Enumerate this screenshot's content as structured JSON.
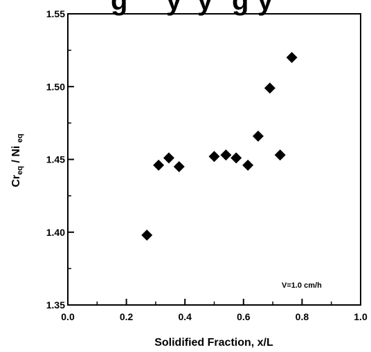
{
  "chart_data": {
    "type": "scatter",
    "title": "",
    "xlabel": "Solidified Fraction, x/L",
    "ylabel": {
      "p1": "Cr",
      "s1": "eq",
      "p2": " / Ni ",
      "s2": "eq"
    },
    "xlim": [
      0.0,
      1.0
    ],
    "ylim": [
      1.35,
      1.55
    ],
    "xticks": [
      0.0,
      0.2,
      0.4,
      0.6,
      0.8,
      1.0
    ],
    "xtick_labels": [
      "0.0",
      "0.2",
      "0.4",
      "0.6",
      "0.8",
      "1.0"
    ],
    "yticks": [
      1.35,
      1.4,
      1.45,
      1.5,
      1.55
    ],
    "ytick_labels": [
      "1.35",
      "1.40",
      "1.45",
      "1.50",
      "1.55"
    ],
    "grid": false,
    "marker": "diamond",
    "marker_color": "#000000",
    "annotation": "V=1.0 cm/h",
    "points": [
      {
        "x": 0.27,
        "y": 1.398
      },
      {
        "x": 0.31,
        "y": 1.446
      },
      {
        "x": 0.345,
        "y": 1.451
      },
      {
        "x": 0.38,
        "y": 1.445
      },
      {
        "x": 0.5,
        "y": 1.452
      },
      {
        "x": 0.54,
        "y": 1.453
      },
      {
        "x": 0.575,
        "y": 1.451
      },
      {
        "x": 0.615,
        "y": 1.446
      },
      {
        "x": 0.65,
        "y": 1.466
      },
      {
        "x": 0.69,
        "y": 1.499
      },
      {
        "x": 0.725,
        "y": 1.453
      },
      {
        "x": 0.765,
        "y": 1.52
      }
    ]
  }
}
